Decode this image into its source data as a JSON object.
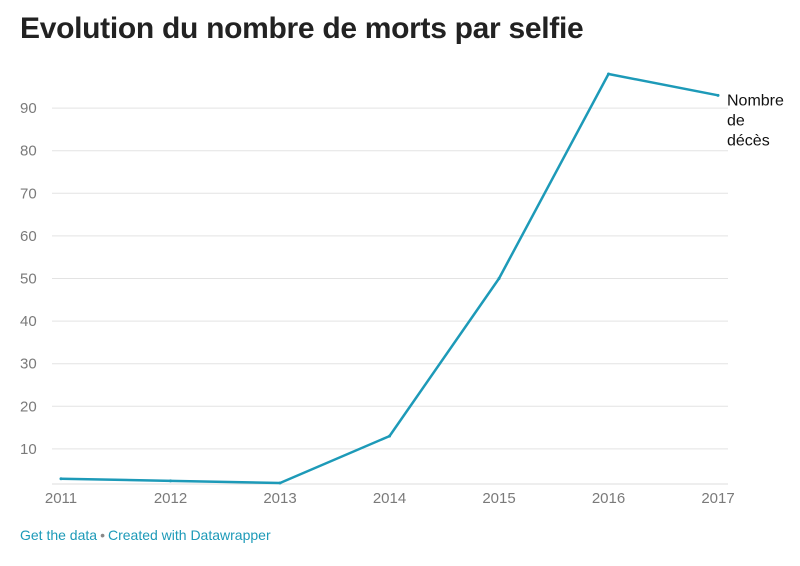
{
  "chart_data": {
    "type": "line",
    "title": "Evolution du nombre de morts par selfie",
    "x": [
      "2011",
      "2012",
      "2013",
      "2014",
      "2015",
      "2016",
      "2017"
    ],
    "series": [
      {
        "name": "Nombre de décès",
        "values": [
          3,
          2.5,
          2,
          13,
          50,
          98,
          93
        ],
        "color": "#1d9ab8"
      }
    ],
    "y_ticks": [
      10,
      20,
      30,
      40,
      50,
      60,
      70,
      80,
      90
    ],
    "ylim": [
      0,
      100
    ],
    "grid": true
  },
  "footer": {
    "get_data": "Get the data",
    "separator": "•",
    "created_with": "Created with Datawrapper"
  }
}
